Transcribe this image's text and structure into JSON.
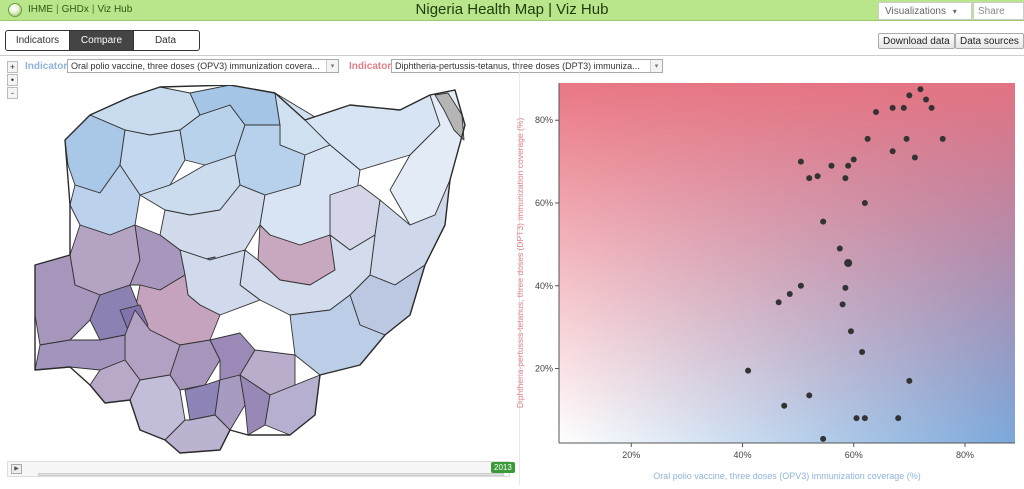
{
  "header": {
    "links": [
      "IHME",
      "GHDx",
      "Viz Hub"
    ],
    "title": "Nigeria Health Map | Viz Hub",
    "visualizations_label": "Visualizations",
    "visualizations_caret": "▾",
    "share_label": "Share"
  },
  "toolbar": {
    "tabs": [
      {
        "label": "Indicators",
        "active": false
      },
      {
        "label": "Compare",
        "active": true
      },
      {
        "label": "Data",
        "active": false
      }
    ],
    "download_label": "Download data",
    "sources_label": "Data sources"
  },
  "zoom": {
    "in": "+",
    "reset": "•",
    "out": "-"
  },
  "indicators": {
    "label": "Indicator",
    "left_value": "Oral polio vaccine, three doses (OPV3) immunization covera...",
    "right_value": "Diphtheria-pertussis-tetanus, three doses (DPT3) immuniza...",
    "caret": "▾",
    "left_color": "#8fb3d9",
    "right_color": "#e07f86"
  },
  "timeline": {
    "play": "▶",
    "year": "2013"
  },
  "chart_data": {
    "type": "scatter",
    "xlabel": "Oral polio vaccine, three doses (OPV3) immunization coverage (%)",
    "ylabel": "Diphtheria-pertussis-tetanus, three doses (DPT3) immunization coverage (%)",
    "xlim": [
      7,
      89
    ],
    "ylim": [
      2,
      89
    ],
    "xticks": [
      {
        "v": 20,
        "label": "20%"
      },
      {
        "v": 40,
        "label": "40%"
      },
      {
        "v": 60,
        "label": "60%"
      },
      {
        "v": 80,
        "label": "80%"
      }
    ],
    "yticks": [
      {
        "v": 20,
        "label": "20%"
      },
      {
        "v": 40,
        "label": "40%"
      },
      {
        "v": 60,
        "label": "60%"
      },
      {
        "v": 80,
        "label": "80%"
      }
    ],
    "point_color": "#333333",
    "points": [
      {
        "x": 70,
        "y": 86
      },
      {
        "x": 72,
        "y": 87.5
      },
      {
        "x": 73,
        "y": 85
      },
      {
        "x": 74,
        "y": 83
      },
      {
        "x": 67,
        "y": 83
      },
      {
        "x": 69,
        "y": 83
      },
      {
        "x": 64,
        "y": 82
      },
      {
        "x": 62.5,
        "y": 75.5
      },
      {
        "x": 67,
        "y": 72.5
      },
      {
        "x": 69.5,
        "y": 75.5
      },
      {
        "x": 76,
        "y": 75.5
      },
      {
        "x": 71,
        "y": 71
      },
      {
        "x": 50.5,
        "y": 70
      },
      {
        "x": 56,
        "y": 69
      },
      {
        "x": 59,
        "y": 69
      },
      {
        "x": 60,
        "y": 70.5
      },
      {
        "x": 52,
        "y": 66
      },
      {
        "x": 53.5,
        "y": 66.5
      },
      {
        "x": 58.5,
        "y": 66
      },
      {
        "x": 62,
        "y": 60
      },
      {
        "x": 54.5,
        "y": 55.5
      },
      {
        "x": 57.5,
        "y": 49
      },
      {
        "x": 59,
        "y": 45.5,
        "size": "large"
      },
      {
        "x": 58.5,
        "y": 39.5
      },
      {
        "x": 58,
        "y": 35.5
      },
      {
        "x": 46.5,
        "y": 36
      },
      {
        "x": 48.5,
        "y": 38
      },
      {
        "x": 50.5,
        "y": 40
      },
      {
        "x": 59.5,
        "y": 29
      },
      {
        "x": 61.5,
        "y": 24
      },
      {
        "x": 41,
        "y": 19.5
      },
      {
        "x": 70,
        "y": 17
      },
      {
        "x": 52,
        "y": 13.5
      },
      {
        "x": 47.5,
        "y": 11
      },
      {
        "x": 60.5,
        "y": 8
      },
      {
        "x": 62,
        "y": 8
      },
      {
        "x": 68,
        "y": 8
      },
      {
        "x": 54.5,
        "y": 3
      }
    ]
  }
}
